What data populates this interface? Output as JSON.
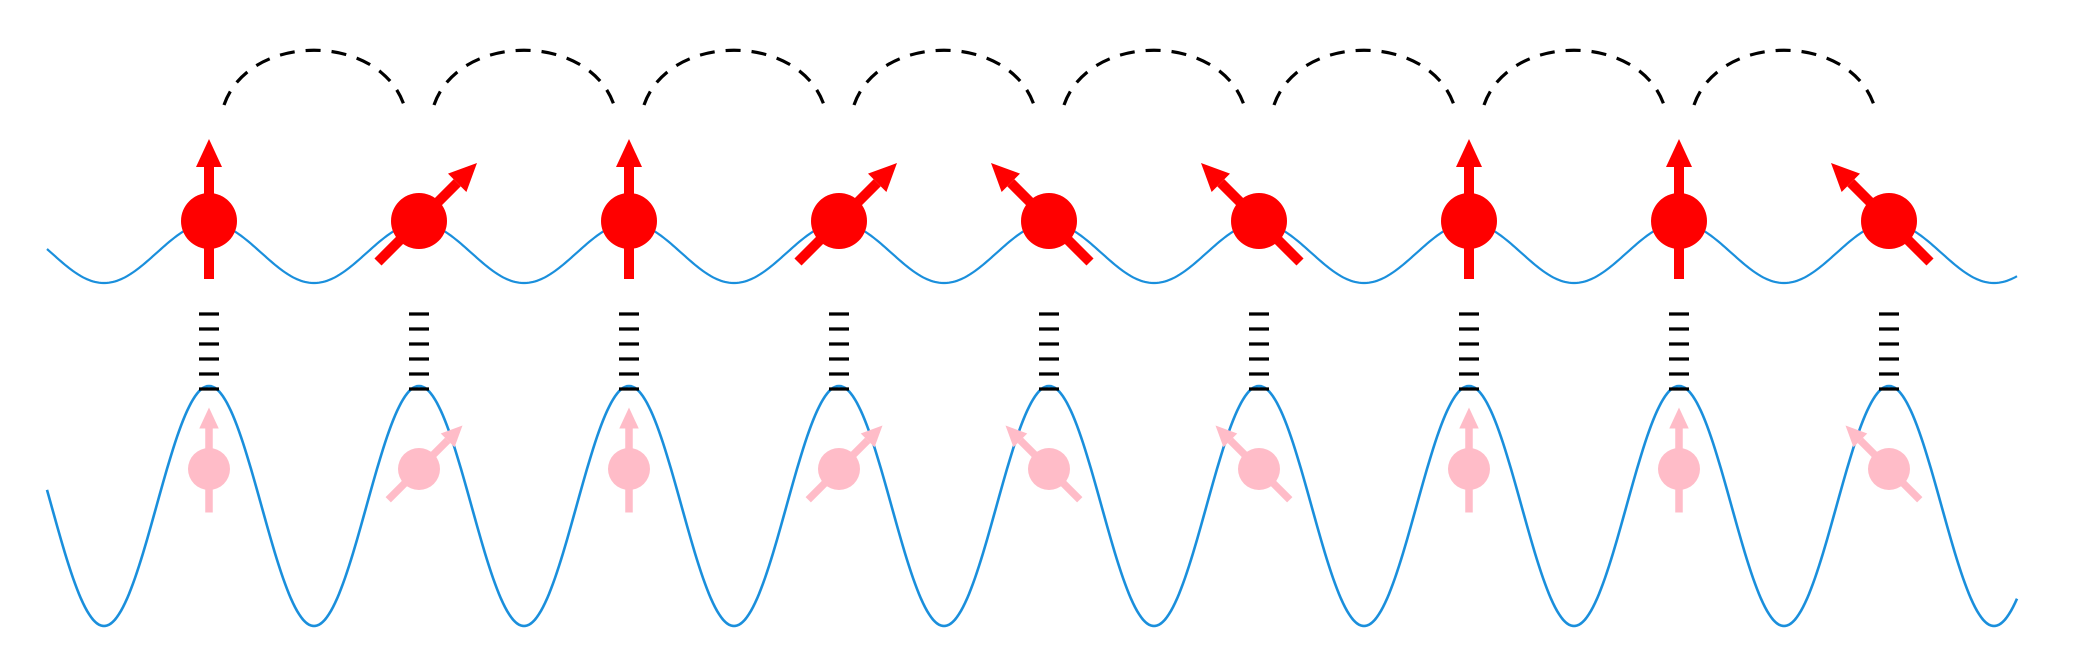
{
  "colors": {
    "background": "#ffffff",
    "potential": "#1a8fdc",
    "spin_upper": "#ff0000",
    "spin_lower": "#ffbcc8",
    "hopping": "#000000",
    "ladder": "#000000"
  },
  "sites": [
    {
      "index": 1,
      "spin_direction": "up"
    },
    {
      "index": 2,
      "spin_direction": "up-right"
    },
    {
      "index": 3,
      "spin_direction": "up"
    },
    {
      "index": 4,
      "spin_direction": "up-right"
    },
    {
      "index": 5,
      "spin_direction": "up-left"
    },
    {
      "index": 6,
      "spin_direction": "up-left"
    },
    {
      "index": 7,
      "spin_direction": "up"
    },
    {
      "index": 8,
      "spin_direction": "up"
    },
    {
      "index": 9,
      "spin_direction": "up-left"
    }
  ],
  "hopping_arcs": 8,
  "ladder_rungs_per_site": 4,
  "upper_lattice": {
    "depth": "shallow"
  },
  "lower_lattice": {
    "depth": "deep"
  }
}
